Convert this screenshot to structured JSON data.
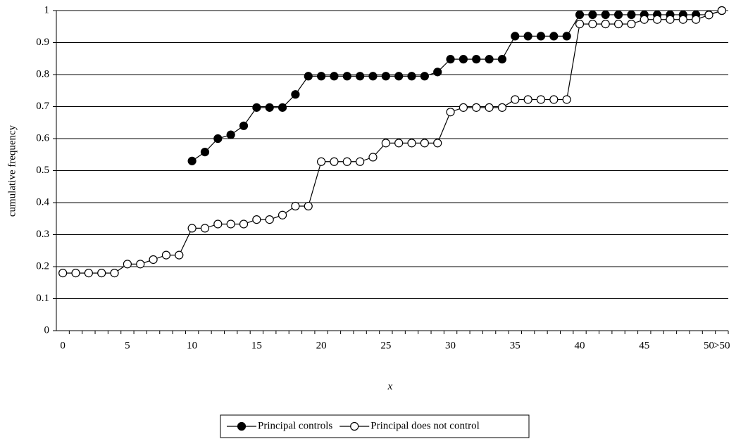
{
  "chart_data": {
    "type": "line",
    "xlabel": "x",
    "ylabel": "cumulative frequency",
    "categories": [
      "0",
      null,
      null,
      null,
      null,
      "5",
      null,
      null,
      null,
      null,
      "10",
      null,
      null,
      null,
      null,
      "15",
      null,
      null,
      null,
      null,
      "20",
      null,
      null,
      null,
      null,
      "25",
      null,
      null,
      null,
      null,
      "30",
      null,
      null,
      null,
      null,
      "35",
      null,
      null,
      null,
      null,
      "40",
      null,
      null,
      null,
      null,
      "45",
      null,
      null,
      null,
      null,
      "50",
      ">50"
    ],
    "series": [
      {
        "name": "Principal controls",
        "color": "#000000",
        "marker": "filled",
        "values": [
          null,
          null,
          null,
          null,
          null,
          null,
          null,
          null,
          null,
          null,
          0.53,
          0.558,
          0.6,
          0.612,
          0.64,
          0.697,
          0.697,
          0.697,
          0.738,
          0.795,
          0.795,
          0.795,
          0.795,
          0.795,
          0.795,
          0.795,
          0.795,
          0.795,
          0.795,
          0.808,
          0.848,
          0.848,
          0.848,
          0.848,
          0.848,
          0.92,
          0.92,
          0.92,
          0.92,
          0.92,
          0.987,
          0.987,
          0.987,
          0.987,
          0.987,
          0.987,
          0.987,
          0.987,
          0.987,
          0.987,
          0.987,
          1.0
        ]
      },
      {
        "name": "Principal does not control",
        "color": "#000000",
        "marker": "hollow",
        "values": [
          0.18,
          0.18,
          0.18,
          0.18,
          0.18,
          0.208,
          0.208,
          0.222,
          0.236,
          0.236,
          0.32,
          0.32,
          0.333,
          0.333,
          0.333,
          0.347,
          0.347,
          0.361,
          0.389,
          0.389,
          0.528,
          0.528,
          0.528,
          0.528,
          0.542,
          0.586,
          0.586,
          0.586,
          0.586,
          0.586,
          0.683,
          0.697,
          0.697,
          0.697,
          0.697,
          0.722,
          0.722,
          0.722,
          0.722,
          0.722,
          0.958,
          0.958,
          0.958,
          0.958,
          0.958,
          0.972,
          0.972,
          0.972,
          0.972,
          0.972,
          0.986,
          1.0
        ]
      }
    ],
    "ylim": [
      0,
      1
    ],
    "yticks": [
      0,
      0.1,
      0.2,
      0.3,
      0.4,
      0.5,
      0.6,
      0.7,
      0.8,
      0.9,
      1
    ],
    "grid": true,
    "legend": "bottom"
  }
}
